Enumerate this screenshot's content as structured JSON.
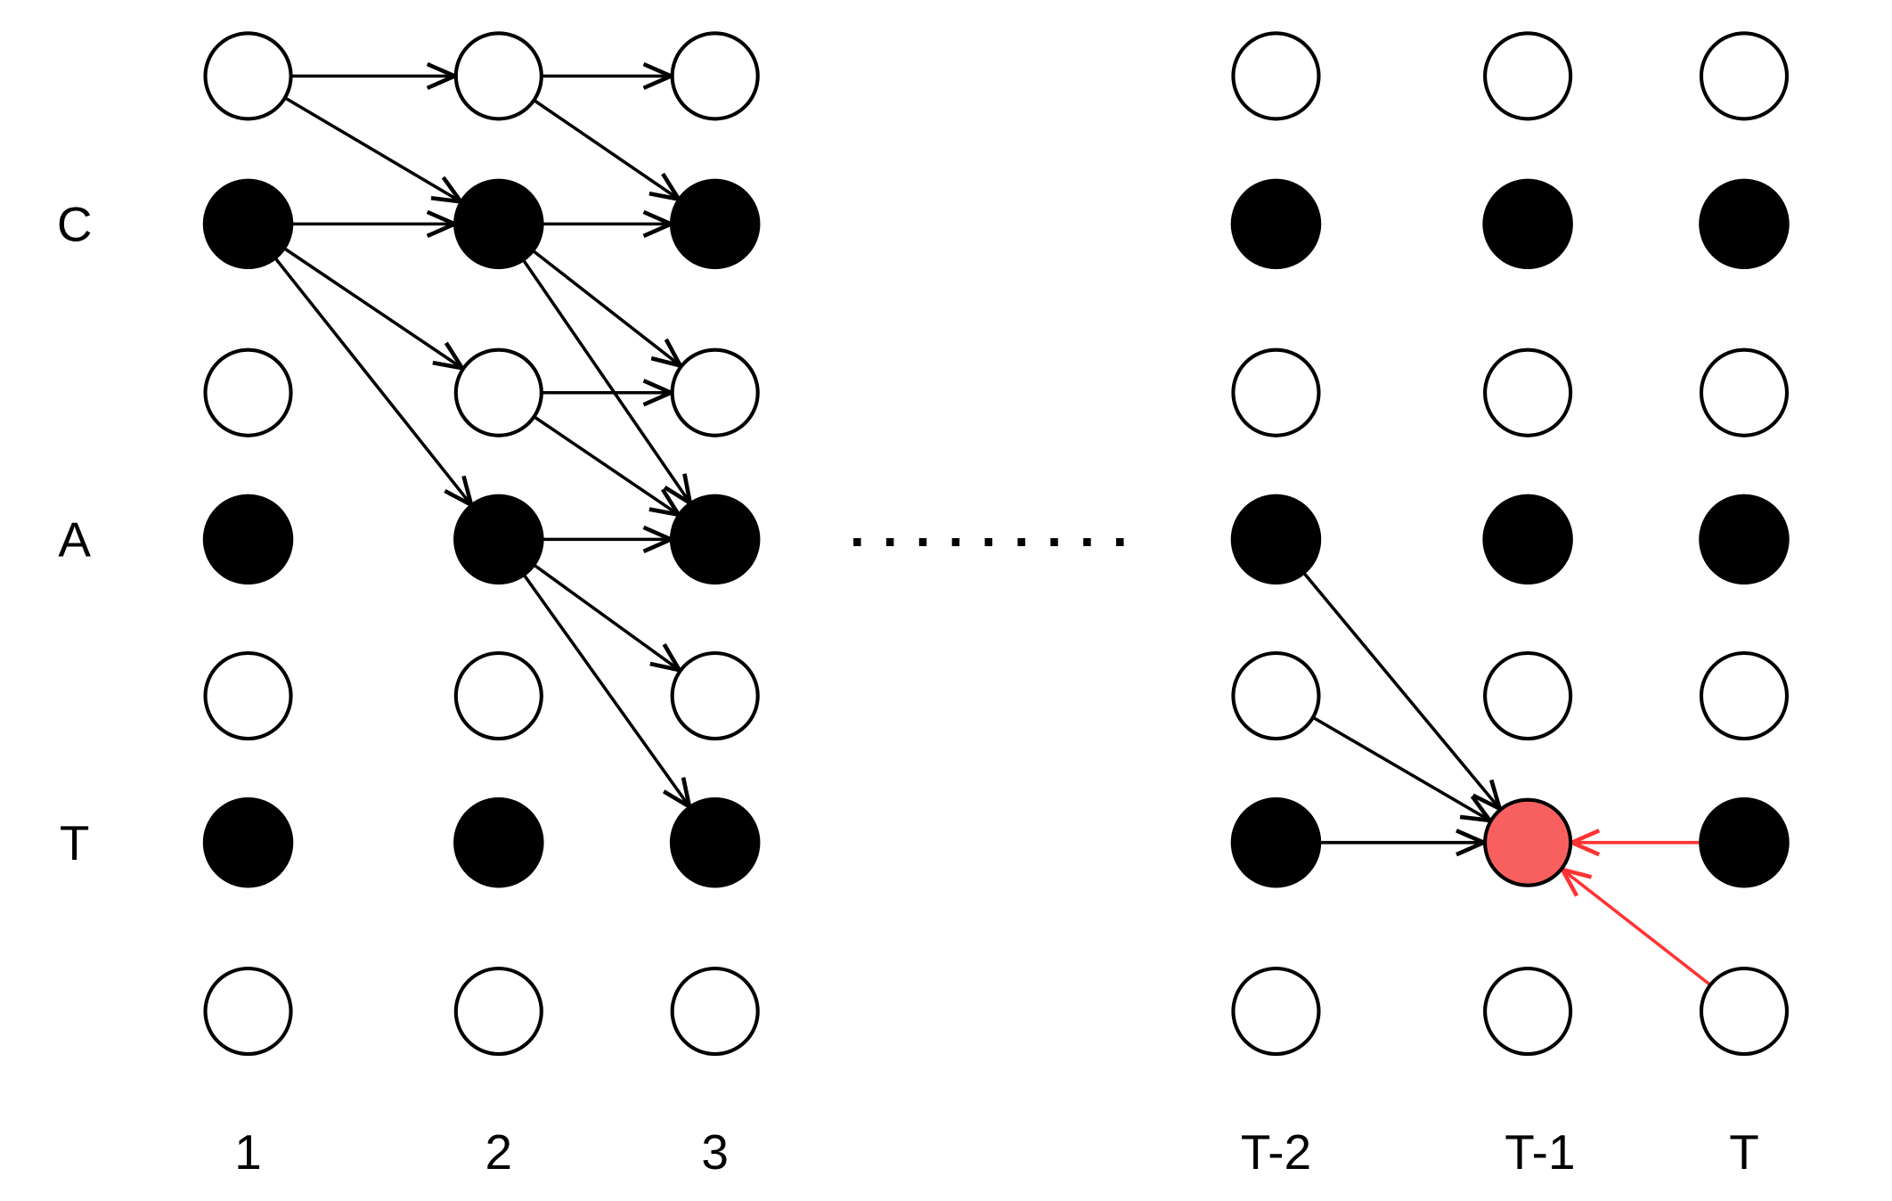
{
  "column_labels": [
    "1",
    "2",
    "3",
    "T-2",
    "T-1",
    "T"
  ],
  "row_labels": [
    {
      "row": 1,
      "text": "C"
    },
    {
      "row": 3,
      "text": "A"
    },
    {
      "row": 5,
      "text": "T"
    }
  ],
  "ellipsis": "· · · · · · · · ·",
  "node_rows": 7,
  "filled_rows": [
    1,
    3,
    5
  ],
  "highlight_node": {
    "col": 4,
    "row": 5
  },
  "colors": {
    "node_fill": "#000000",
    "node_empty": "#ffffff",
    "edge": "#000000",
    "highlight_fill": "#f86060",
    "highlight_edge": "#ff3333"
  },
  "edges": [
    {
      "from": [
        0,
        0
      ],
      "to": [
        1,
        0
      ]
    },
    {
      "from": [
        0,
        0
      ],
      "to": [
        1,
        1
      ]
    },
    {
      "from": [
        1,
        0
      ],
      "to": [
        2,
        0
      ]
    },
    {
      "from": [
        1,
        0
      ],
      "to": [
        2,
        1
      ]
    },
    {
      "from": [
        0,
        1
      ],
      "to": [
        1,
        1
      ]
    },
    {
      "from": [
        0,
        1
      ],
      "to": [
        1,
        2
      ]
    },
    {
      "from": [
        0,
        1
      ],
      "to": [
        1,
        3
      ]
    },
    {
      "from": [
        1,
        1
      ],
      "to": [
        2,
        1
      ]
    },
    {
      "from": [
        1,
        1
      ],
      "to": [
        2,
        2
      ]
    },
    {
      "from": [
        1,
        1
      ],
      "to": [
        2,
        3
      ]
    },
    {
      "from": [
        1,
        2
      ],
      "to": [
        2,
        2
      ]
    },
    {
      "from": [
        1,
        2
      ],
      "to": [
        2,
        3
      ]
    },
    {
      "from": [
        1,
        3
      ],
      "to": [
        2,
        3
      ]
    },
    {
      "from": [
        1,
        3
      ],
      "to": [
        2,
        4
      ]
    },
    {
      "from": [
        1,
        3
      ],
      "to": [
        2,
        5
      ]
    },
    {
      "from": [
        3,
        3
      ],
      "to": [
        4,
        5
      ]
    },
    {
      "from": [
        3,
        4
      ],
      "to": [
        4,
        5
      ]
    },
    {
      "from": [
        3,
        5
      ],
      "to": [
        4,
        5
      ]
    }
  ],
  "highlight_edges": [
    {
      "from": [
        5,
        5
      ],
      "to": [
        4,
        5
      ]
    },
    {
      "from": [
        5,
        6
      ],
      "to": [
        4,
        5
      ]
    }
  ]
}
